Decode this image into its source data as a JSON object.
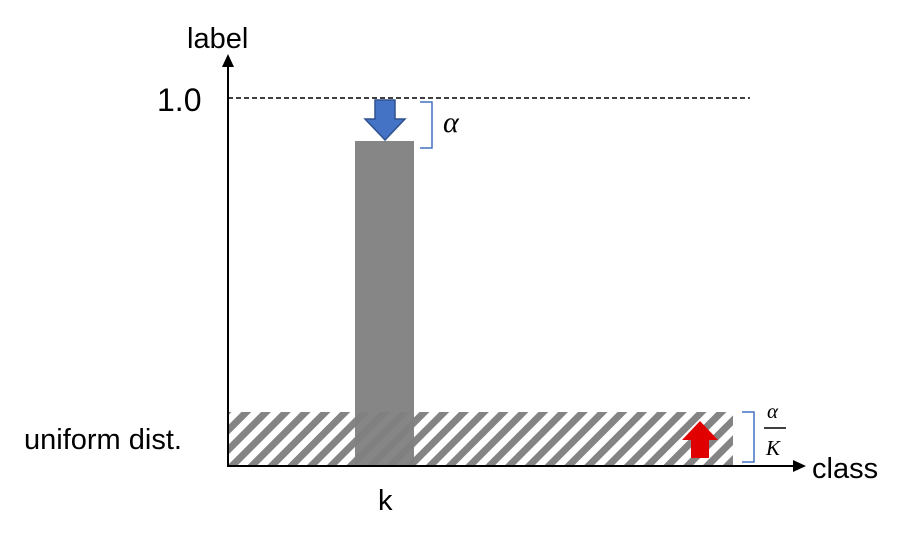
{
  "axes": {
    "y_label": "label",
    "x_label": "class",
    "y_tick": "1.0",
    "x_tick": "k"
  },
  "uniform_label": "uniform dist.",
  "annotations": {
    "alpha": "α",
    "alpha_over_k_numerator": "α",
    "alpha_over_k_denominator": "K"
  },
  "colors": {
    "bar": "#7f7f7f",
    "hatch": "#595959",
    "down_arrow": "#4472c4",
    "up_arrow": "#e00000",
    "bracket": "#4472c4"
  }
}
